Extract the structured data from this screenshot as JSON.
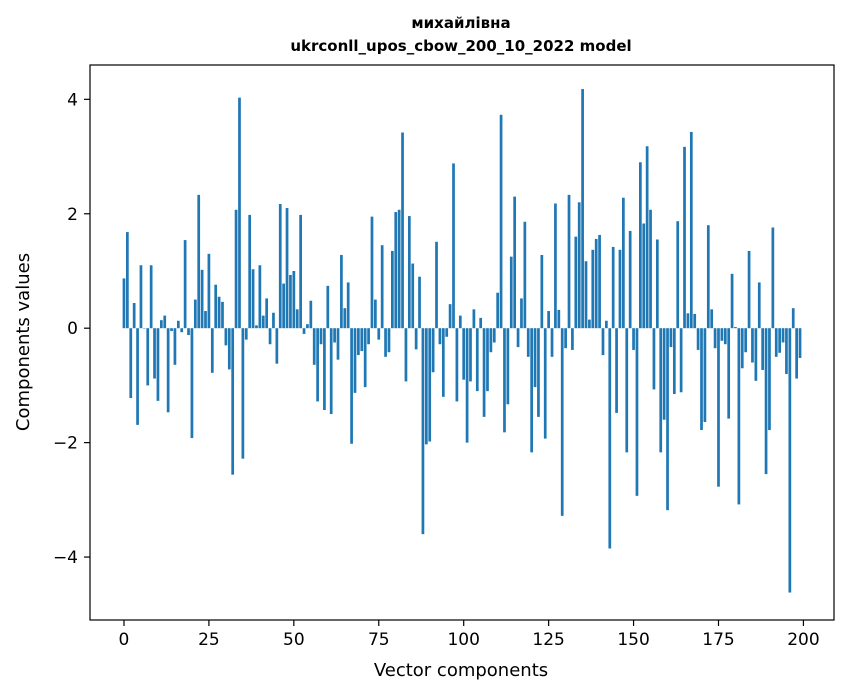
{
  "chart_data": {
    "type": "bar",
    "title": "михайлівна",
    "subtitle": "ukrconll_upos_cbow_200_10_2022 model",
    "xlabel": "Vector components",
    "ylabel": "Components values",
    "xlim": [
      -10,
      209
    ],
    "ylim": [
      -5.1,
      4.6
    ],
    "xticks": [
      0,
      25,
      50,
      75,
      100,
      125,
      150,
      175,
      200
    ],
    "yticks": [
      -4,
      -2,
      0,
      2,
      4
    ],
    "grid": false,
    "bar_color": "#1f77b4",
    "x": [
      0,
      1,
      2,
      3,
      4,
      5,
      6,
      7,
      8,
      9,
      10,
      11,
      12,
      13,
      14,
      15,
      16,
      17,
      18,
      19,
      20,
      21,
      22,
      23,
      24,
      25,
      26,
      27,
      28,
      29,
      30,
      31,
      32,
      33,
      34,
      35,
      36,
      37,
      38,
      39,
      40,
      41,
      42,
      43,
      44,
      45,
      46,
      47,
      48,
      49,
      50,
      51,
      52,
      53,
      54,
      55,
      56,
      57,
      58,
      59,
      60,
      61,
      62,
      63,
      64,
      65,
      66,
      67,
      68,
      69,
      70,
      71,
      72,
      73,
      74,
      75,
      76,
      77,
      78,
      79,
      80,
      81,
      82,
      83,
      84,
      85,
      86,
      87,
      88,
      89,
      90,
      91,
      92,
      93,
      94,
      95,
      96,
      97,
      98,
      99,
      100,
      101,
      102,
      103,
      104,
      105,
      106,
      107,
      108,
      109,
      110,
      111,
      112,
      113,
      114,
      115,
      116,
      117,
      118,
      119,
      120,
      121,
      122,
      123,
      124,
      125,
      126,
      127,
      128,
      129,
      130,
      131,
      132,
      133,
      134,
      135,
      136,
      137,
      138,
      139,
      140,
      141,
      142,
      143,
      144,
      145,
      146,
      147,
      148,
      149,
      150,
      151,
      152,
      153,
      154,
      155,
      156,
      157,
      158,
      159,
      160,
      161,
      162,
      163,
      164,
      165,
      166,
      167,
      168,
      169,
      170,
      171,
      172,
      173,
      174,
      175,
      176,
      177,
      178,
      179,
      180,
      181,
      182,
      183,
      184,
      185,
      186,
      187,
      188,
      189,
      190,
      191,
      192,
      193,
      194,
      195,
      196,
      197,
      198,
      199
    ],
    "values": [
      0.87,
      1.68,
      -1.22,
      0.44,
      -1.69,
      1.1,
      0.0,
      -1.0,
      1.1,
      -0.88,
      -1.27,
      0.14,
      0.22,
      -1.47,
      -0.05,
      -0.64,
      0.13,
      -0.07,
      1.54,
      -0.12,
      -1.92,
      0.5,
      2.33,
      1.02,
      0.3,
      1.3,
      -0.78,
      0.76,
      0.55,
      0.46,
      -0.3,
      -0.72,
      -2.56,
      2.07,
      4.03,
      -2.28,
      -0.2,
      1.98,
      1.03,
      0.05,
      1.1,
      0.22,
      0.52,
      -0.28,
      0.27,
      -0.62,
      2.17,
      0.78,
      2.1,
      0.93,
      1.0,
      0.33,
      1.98,
      -0.1,
      0.07,
      0.48,
      -0.64,
      -1.28,
      -0.28,
      -1.43,
      0.74,
      -1.5,
      -0.25,
      -0.55,
      1.28,
      0.35,
      0.8,
      -2.02,
      -1.13,
      -0.47,
      -0.4,
      -1.03,
      -0.28,
      1.95,
      0.5,
      -0.2,
      1.45,
      -0.5,
      -0.42,
      1.35,
      2.03,
      2.07,
      3.42,
      -0.93,
      1.96,
      1.13,
      -0.37,
      0.9,
      -3.6,
      -2.03,
      -1.98,
      -0.77,
      1.51,
      -0.28,
      -1.2,
      -0.15,
      0.42,
      2.88,
      -1.28,
      0.22,
      -0.9,
      -2.0,
      -0.93,
      0.33,
      -1.1,
      0.18,
      -1.55,
      -1.1,
      -0.42,
      -0.25,
      0.62,
      3.73,
      -1.82,
      -1.33,
      1.25,
      2.3,
      -0.33,
      0.52,
      1.86,
      -0.5,
      -2.17,
      -1.03,
      -1.55,
      1.28,
      -1.93,
      0.3,
      -0.5,
      2.18,
      0.32,
      -3.28,
      -0.35,
      2.33,
      -0.38,
      1.6,
      2.2,
      4.18,
      1.17,
      0.15,
      1.37,
      1.56,
      1.63,
      -0.47,
      0.13,
      -3.85,
      1.42,
      -1.48,
      1.37,
      2.28,
      -2.17,
      1.7,
      -0.38,
      -2.93,
      2.9,
      1.83,
      3.18,
      2.07,
      -1.07,
      1.55,
      -2.17,
      -1.6,
      -3.18,
      -0.33,
      -1.15,
      1.87,
      -1.12,
      3.17,
      0.26,
      3.43,
      0.25,
      -0.38,
      -1.78,
      -1.64,
      1.8,
      0.33,
      -0.35,
      -2.77,
      -0.22,
      -0.28,
      -1.58,
      0.95,
      0.02,
      -3.08,
      -0.7,
      -0.42,
      1.35,
      -0.6,
      -0.92,
      0.8,
      -0.73,
      -2.55,
      -1.78,
      1.76,
      -0.5,
      -0.43,
      -0.25,
      -0.8,
      -4.62,
      0.35,
      -0.88,
      -0.52
    ]
  }
}
